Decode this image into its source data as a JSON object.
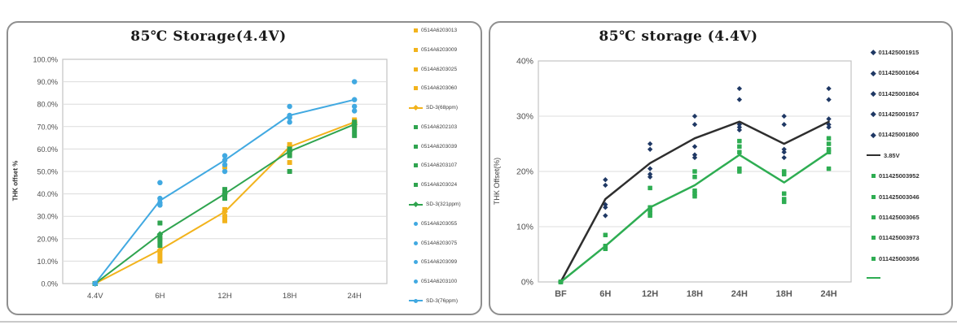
{
  "chart_data": [
    {
      "type": "line",
      "title": "85℃ Storage(4.4V)",
      "xlabel": "",
      "ylabel": "THK offset %",
      "categories": [
        "4.4V",
        "6H",
        "12H",
        "18H",
        "24H"
      ],
      "ylim": [
        0,
        100
      ],
      "y_tick_values": [
        0,
        10,
        20,
        30,
        40,
        50,
        60,
        70,
        80,
        90,
        100
      ],
      "y_tick_labels": [
        "0.0%",
        "10.0%",
        "20.0%",
        "30.0%",
        "40.0%",
        "50.0%",
        "60.0%",
        "70.0%",
        "80.0%",
        "90.0%",
        "100.0%"
      ],
      "grid": true,
      "legend_position": "right",
      "series": [
        {
          "name": "0514A6203013",
          "kind": "scatter",
          "marker": "square",
          "color": "#F2B31C",
          "size": 6,
          "values": [
            0,
            20,
            52,
            62,
            73
          ]
        },
        {
          "name": "0514A6203009",
          "kind": "scatter",
          "marker": "square",
          "color": "#F2B31C",
          "size": 6,
          "values": [
            0,
            14,
            33,
            61,
            72
          ]
        },
        {
          "name": "0514A6203025",
          "kind": "scatter",
          "marker": "square",
          "color": "#F2B31C",
          "size": 6,
          "values": [
            0,
            12,
            30,
            58,
            71
          ]
        },
        {
          "name": "0514A6203060",
          "kind": "scatter",
          "marker": "square",
          "color": "#F2B31C",
          "size": 6,
          "values": [
            0,
            10,
            28,
            54,
            70
          ]
        },
        {
          "name": "SD-3(68ppm)",
          "kind": "line",
          "color": "#F2B31C",
          "width": 2,
          "line_marker": "diamond",
          "values": [
            0,
            15,
            32,
            61,
            72
          ]
        },
        {
          "name": "0514A6202103",
          "kind": "scatter",
          "marker": "square",
          "color": "#2FA44F",
          "size": 6,
          "values": [
            0,
            27,
            42,
            60,
            72
          ]
        },
        {
          "name": "0514A6203039",
          "kind": "scatter",
          "marker": "square",
          "color": "#2FA44F",
          "size": 6,
          "values": [
            0,
            21,
            40,
            59,
            70
          ]
        },
        {
          "name": "0514A6203107",
          "kind": "scatter",
          "marker": "square",
          "color": "#2FA44F",
          "size": 6,
          "values": [
            0,
            19,
            39,
            57,
            68
          ]
        },
        {
          "name": "0514A6203024",
          "kind": "scatter",
          "marker": "square",
          "color": "#2FA44F",
          "size": 6,
          "values": [
            0,
            17,
            38,
            50,
            66
          ]
        },
        {
          "name": "SD-3(321ppm)",
          "kind": "line",
          "color": "#2FA44F",
          "width": 2,
          "line_marker": "diamond",
          "values": [
            0,
            22,
            40,
            59,
            71
          ]
        },
        {
          "name": "0514A6203055",
          "kind": "scatter",
          "marker": "circle",
          "color": "#41A9E1",
          "size": 6.5,
          "values": [
            0,
            45,
            57,
            79,
            90
          ]
        },
        {
          "name": "0514A6203075",
          "kind": "scatter",
          "marker": "circle",
          "color": "#41A9E1",
          "size": 6.5,
          "values": [
            0,
            38,
            55,
            75,
            82
          ]
        },
        {
          "name": "0514A6203099",
          "kind": "scatter",
          "marker": "circle",
          "color": "#41A9E1",
          "size": 6.5,
          "values": [
            0,
            36,
            53,
            74,
            79
          ]
        },
        {
          "name": "0514A6203100",
          "kind": "scatter",
          "marker": "circle",
          "color": "#41A9E1",
          "size": 6.5,
          "values": [
            0,
            35,
            50,
            72,
            77
          ]
        },
        {
          "name": "SD-3(76ppm)",
          "kind": "line",
          "color": "#41A9E1",
          "width": 2,
          "line_marker": "circle",
          "values": [
            0,
            37,
            55,
            75,
            82
          ]
        }
      ]
    },
    {
      "type": "line",
      "title": "85℃ storage (4.4V)",
      "xlabel": "",
      "ylabel": "THK Offset(%)",
      "categories": [
        "BF",
        "6H",
        "12H",
        "18H",
        "24H",
        "18H",
        "24H"
      ],
      "ylim": [
        0,
        40
      ],
      "y_tick_values": [
        0,
        10,
        20,
        30,
        40
      ],
      "y_tick_labels": [
        "0%",
        "10%",
        "20%",
        "30%",
        "40%"
      ],
      "grid": true,
      "legend_position": "right",
      "series": [
        {
          "name": "011425001915",
          "kind": "scatter",
          "marker": "diamond",
          "color": "#1F3864",
          "size": 4.5,
          "values": [
            0,
            18.5,
            25,
            30,
            35,
            30,
            35
          ]
        },
        {
          "name": "011425001064",
          "kind": "scatter",
          "marker": "diamond",
          "color": "#1F3864",
          "size": 4.5,
          "values": [
            0,
            17.5,
            24,
            28.5,
            33,
            28.5,
            33
          ]
        },
        {
          "name": "011425001804",
          "kind": "scatter",
          "marker": "diamond",
          "color": "#1F3864",
          "size": 4.5,
          "values": [
            0,
            14,
            20.5,
            24.5,
            28.5,
            24,
            29.5
          ]
        },
        {
          "name": "011425001917",
          "kind": "scatter",
          "marker": "diamond",
          "color": "#1F3864",
          "size": 4.5,
          "values": [
            0,
            13.5,
            19.5,
            23,
            28,
            23.5,
            28.5
          ]
        },
        {
          "name": "011425001800",
          "kind": "scatter",
          "marker": "diamond",
          "color": "#1F3864",
          "size": 4.5,
          "values": [
            0,
            12,
            19,
            22.5,
            27.5,
            22.5,
            28
          ]
        },
        {
          "name": "3.85V",
          "kind": "line",
          "color": "#2E2E2E",
          "width": 2.5,
          "line_marker": null,
          "values": [
            0,
            15,
            21.5,
            26,
            29,
            25,
            29
          ]
        },
        {
          "name": "011425003952",
          "kind": "scatter",
          "marker": "square",
          "color": "#2EAD52",
          "size": 5.5,
          "values": [
            0,
            8.5,
            17,
            20,
            25.5,
            20,
            26
          ]
        },
        {
          "name": "011425003046",
          "kind": "scatter",
          "marker": "square",
          "color": "#2EAD52",
          "size": 5.5,
          "values": [
            0,
            6.5,
            13.5,
            19,
            24.5,
            19.5,
            25
          ]
        },
        {
          "name": "011425003065",
          "kind": "scatter",
          "marker": "square",
          "color": "#2EAD52",
          "size": 5.5,
          "values": [
            0,
            6.2,
            13,
            16.5,
            23.5,
            16,
            24
          ]
        },
        {
          "name": "011425003973",
          "kind": "scatter",
          "marker": "square",
          "color": "#2EAD52",
          "size": 5.5,
          "values": [
            0,
            6,
            12.5,
            16,
            20.5,
            15,
            23.5
          ]
        },
        {
          "name": "011425003056",
          "kind": "scatter",
          "marker": "square",
          "color": "#2EAD52",
          "size": 5.5,
          "values": [
            0,
            6,
            12,
            15.5,
            20,
            14.5,
            20.5
          ]
        },
        {
          "name": "",
          "kind": "line",
          "color": "#2EAD52",
          "width": 2.5,
          "line_marker": null,
          "values": [
            0,
            6.5,
            13.5,
            17.5,
            23,
            18,
            23.5
          ]
        }
      ]
    }
  ]
}
